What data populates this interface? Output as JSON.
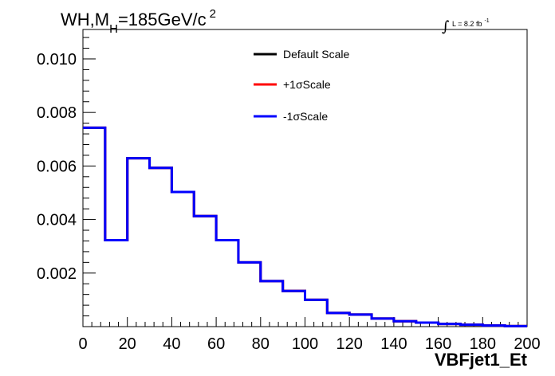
{
  "chart_data": {
    "type": "step-histogram",
    "title": {
      "main": "WH,M",
      "subscript": "H",
      "value": "=185GeV/c",
      "superscript": "2"
    },
    "luminosity": {
      "symbol": "∫",
      "text": "L = 8.2 fb",
      "superscript": "-1"
    },
    "xlabel": "VBFjet1_Et",
    "ylabel": "",
    "xlim": [
      0,
      200
    ],
    "ylim": [
      0,
      0.0111
    ],
    "x_ticks": [
      "0",
      "20",
      "40",
      "60",
      "80",
      "100",
      "120",
      "140",
      "160",
      "180",
      "200"
    ],
    "x_tick_values": [
      0,
      20,
      40,
      60,
      80,
      100,
      120,
      140,
      160,
      180,
      200
    ],
    "y_ticks": [
      "0.002",
      "0.004",
      "0.006",
      "0.008",
      "0.010"
    ],
    "y_tick_values": [
      0.002,
      0.004,
      0.006,
      0.008,
      0.01
    ],
    "bin_edges": [
      0,
      10,
      20,
      30,
      40,
      50,
      60,
      70,
      80,
      90,
      100,
      110,
      120,
      130,
      140,
      150,
      160,
      170,
      180,
      190,
      200
    ],
    "series": [
      {
        "name": "Default Scale",
        "color": "#000000",
        "values": [
          0.00743,
          0.00323,
          0.00629,
          0.00593,
          0.00503,
          0.00413,
          0.00323,
          0.0024,
          0.0017,
          0.00133,
          0.001,
          0.00051,
          0.00045,
          0.0003,
          0.0002,
          0.00015,
          0.0001,
          7e-05,
          4e-05,
          2e-05
        ]
      },
      {
        "name": "+1σScale",
        "color": "#ff0000",
        "values": [
          0.00743,
          0.00323,
          0.00629,
          0.00593,
          0.00503,
          0.00413,
          0.00323,
          0.0024,
          0.0017,
          0.00133,
          0.001,
          0.00051,
          0.00045,
          0.0003,
          0.0002,
          0.00015,
          0.0001,
          7e-05,
          4e-05,
          2e-05
        ]
      },
      {
        "name": "-1σScale",
        "color": "#0000ff",
        "values": [
          0.00743,
          0.00323,
          0.00629,
          0.00593,
          0.00503,
          0.00413,
          0.00323,
          0.0024,
          0.0017,
          0.00133,
          0.001,
          0.00051,
          0.00045,
          0.0003,
          0.0002,
          0.00015,
          0.0001,
          7e-05,
          4e-05,
          2e-05
        ]
      }
    ],
    "legend_position": "top-right inside plot",
    "grid": false
  }
}
